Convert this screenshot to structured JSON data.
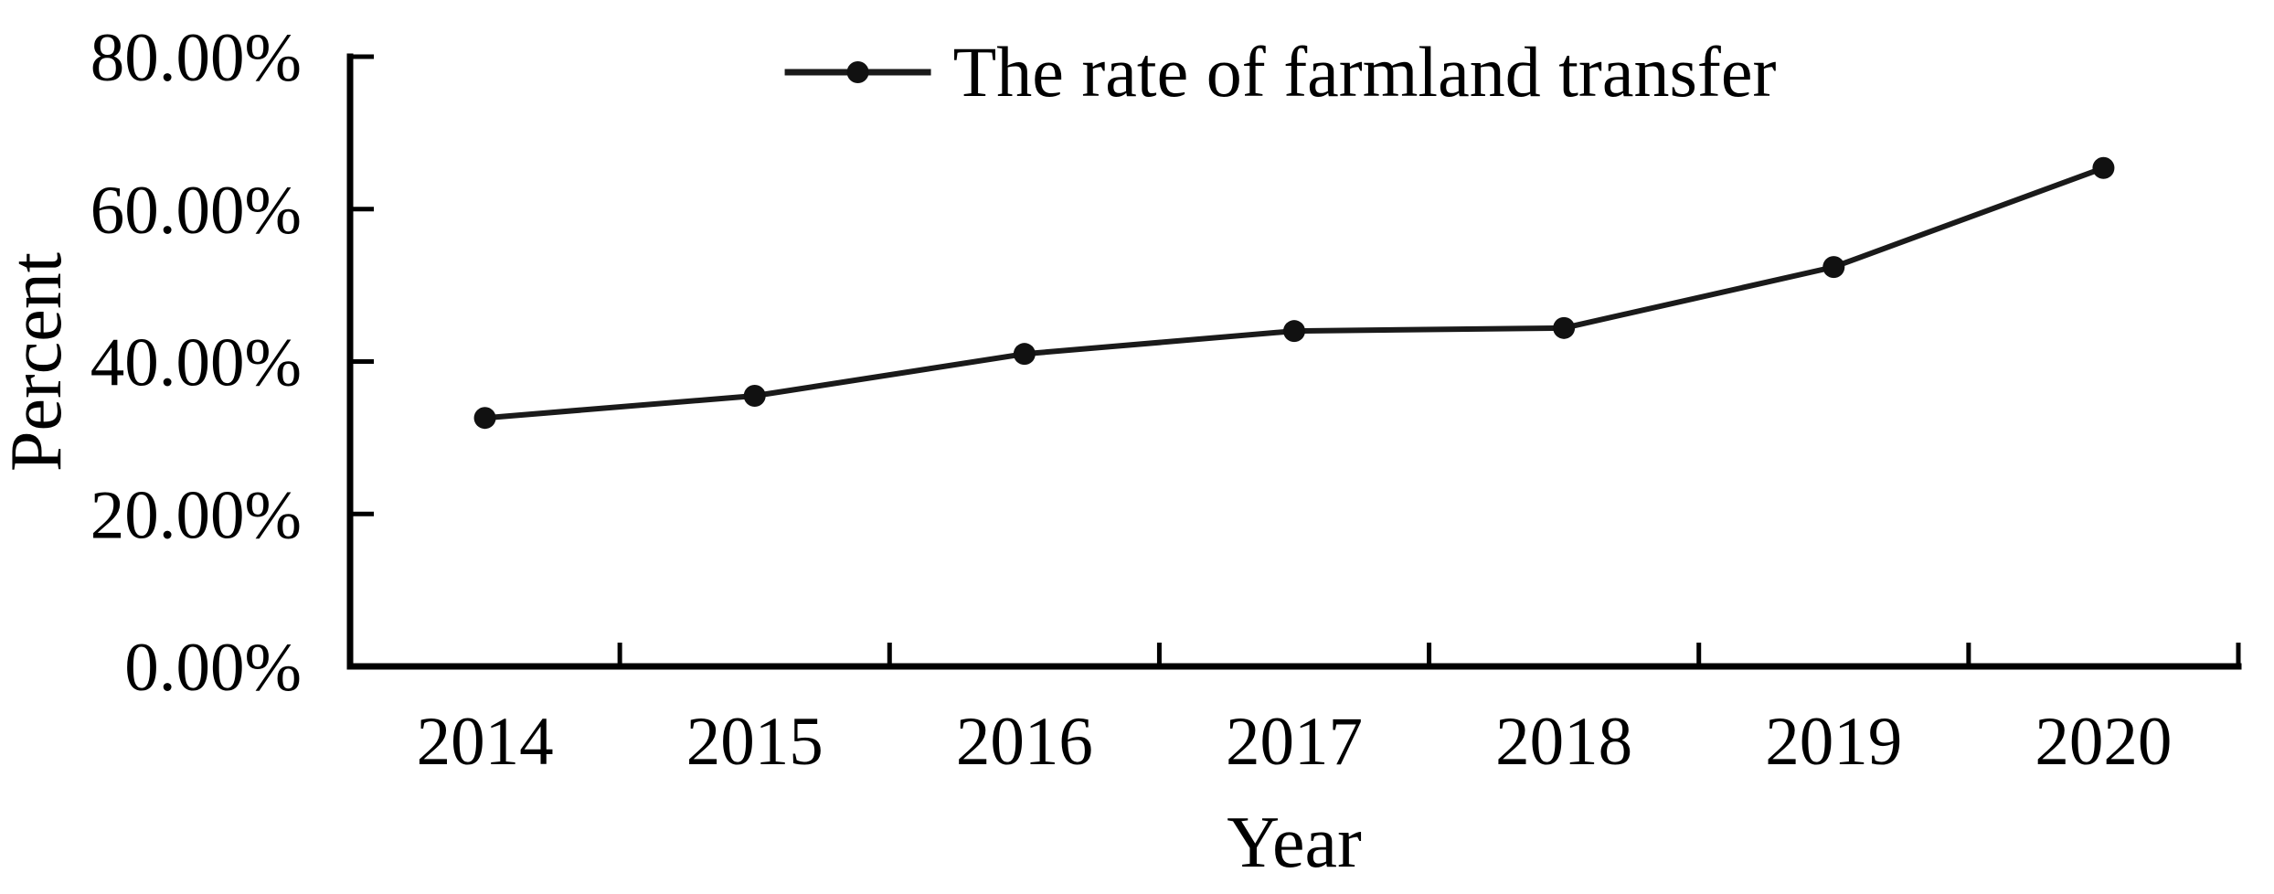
{
  "chart_data": {
    "type": "line",
    "title": "",
    "xlabel": "Year",
    "ylabel": "Percent",
    "categories": [
      "2014",
      "2015",
      "2016",
      "2017",
      "2018",
      "2019",
      "2020"
    ],
    "series": [
      {
        "name": "The rate of farmland transfer",
        "values": [
          32.6,
          35.5,
          41.0,
          44.0,
          44.4,
          52.4,
          65.4
        ],
        "color": "#1a1a1a",
        "marker": "filled-circle"
      }
    ],
    "ylim": [
      0,
      80
    ],
    "yticks": [
      0,
      20,
      40,
      60,
      80
    ],
    "ytick_labels": [
      "0.00%",
      "20.00%",
      "40.00%",
      "60.00%",
      "80.00%"
    ],
    "grid": false,
    "legend_position": "top-center",
    "axis_color": "#000000",
    "background_color": "#ffffff",
    "tick_style": "inside"
  }
}
